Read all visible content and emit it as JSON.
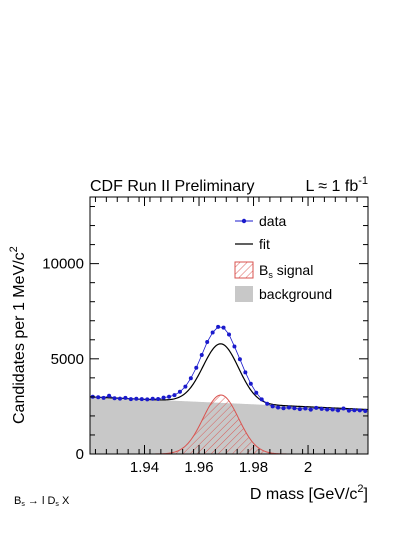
{
  "header": {
    "left": "CDF Run II Preliminary",
    "lumi_prefix": "L ≈ 1 fb",
    "lumi_exp": "-1"
  },
  "footer": {
    "decay_main": "B",
    "decay_sub": "s",
    "decay_rest": " → l D",
    "decay_sub2": "s",
    "decay_tail": " X"
  },
  "axes": {
    "ylabel_main": "Candidates per 1 MeV/c",
    "ylabel_exp": "2",
    "xlabel_main": "D mass [GeV/c",
    "xlabel_exp": "2",
    "xlabel_close": "]"
  },
  "legend": {
    "data": "data",
    "fit": "fit",
    "signal_main": "B",
    "signal_sub": "s",
    "signal_rest": " signal",
    "background": "background"
  },
  "colors": {
    "data": "#1a1acc",
    "fit": "#000000",
    "signal": "#d9534f",
    "background": "#c8c8c8"
  },
  "chart_data": {
    "type": "scatter",
    "title": "CDF Run II Preliminary",
    "xlabel": "D mass [GeV/c²]",
    "ylabel": "Candidates per 1 MeV/c²",
    "xlim": [
      1.92,
      2.022
    ],
    "ylim": [
      0,
      13500
    ],
    "xticks": [
      1.94,
      1.96,
      1.98,
      2
    ],
    "xtick_labels": [
      "1.94",
      "1.96",
      "1.98",
      "2"
    ],
    "yticks": [
      0,
      5000,
      10000
    ],
    "ytick_labels": [
      "0",
      "5000",
      "10000"
    ],
    "legend_position": "top-right",
    "fit_model": {
      "background_linear": {
        "at_1.920": 3000,
        "slope_per_GeV": -6500
      },
      "signal_gaussian": {
        "amplitude": 3100,
        "mean": 1.968,
        "sigma": 0.0065
      }
    },
    "series": [
      {
        "name": "data",
        "style": "points",
        "x": [
          1.921,
          1.923,
          1.925,
          1.927,
          1.929,
          1.931,
          1.933,
          1.935,
          1.937,
          1.939,
          1.941,
          1.943,
          1.945,
          1.947,
          1.949,
          1.951,
          1.953,
          1.955,
          1.957,
          1.959,
          1.961,
          1.963,
          1.965,
          1.967,
          1.969,
          1.971,
          1.973,
          1.975,
          1.977,
          1.979,
          1.981,
          1.983,
          1.985,
          1.987,
          1.989,
          1.991,
          1.993,
          1.995,
          1.997,
          1.999,
          2.001,
          2.003,
          2.005,
          2.007,
          2.009,
          2.011,
          2.013,
          2.015,
          2.017,
          2.019,
          2.021
        ],
        "y": [
          3010,
          2980,
          2950,
          3060,
          2930,
          2910,
          2950,
          2880,
          2900,
          2880,
          2870,
          2900,
          2890,
          2960,
          3010,
          3090,
          3270,
          3540,
          3980,
          4530,
          5200,
          5880,
          6380,
          6680,
          6640,
          6280,
          5650,
          4980,
          4290,
          3690,
          3220,
          2870,
          2640,
          2500,
          2440,
          2400,
          2440,
          2400,
          2360,
          2390,
          2330,
          2420,
          2370,
          2340,
          2340,
          2290,
          2390,
          2280,
          2300,
          2290,
          2260
        ]
      },
      {
        "name": "fit",
        "style": "line"
      },
      {
        "name": "Bs signal",
        "style": "hatched-area"
      },
      {
        "name": "background",
        "style": "filled-area"
      }
    ]
  }
}
